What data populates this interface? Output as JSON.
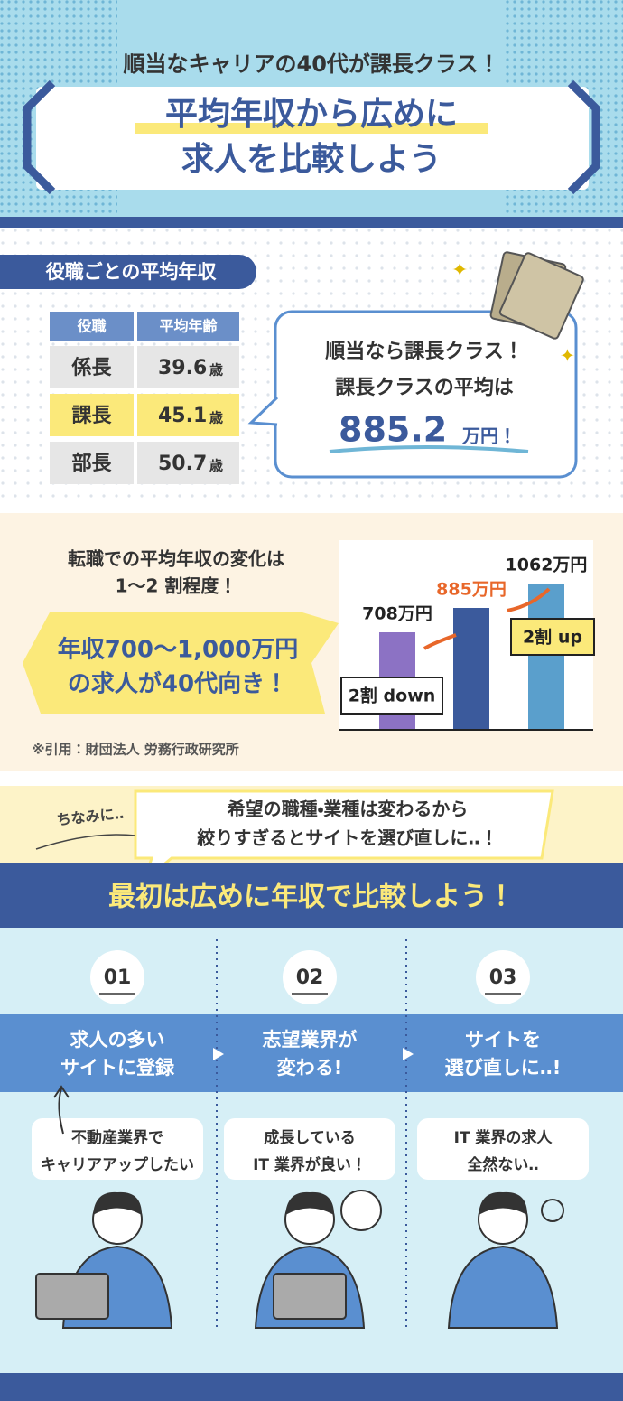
{
  "header": {
    "subtitle": "順当なキャリアの40代が課長クラス！",
    "title_lines": [
      "平均年収から広めに",
      "求人を比較しよう"
    ]
  },
  "section1": {
    "label": "役職ごとの平均年収",
    "table": {
      "header": [
        "役職",
        "平均年齢"
      ],
      "rows": [
        {
          "role": "係長",
          "age": 39.6,
          "unit": "歳"
        },
        {
          "role": "課長",
          "age": 45.1,
          "unit": "歳"
        },
        {
          "role": "部長",
          "age": 50.7,
          "unit": "歳"
        }
      ]
    },
    "bubble": {
      "lines": [
        "順当なら課長クラス！",
        "課長クラスの平均は"
      ],
      "amount": "885.2",
      "unit": "万円！"
    }
  },
  "section2": {
    "lines": [
      "転職での平均年収の変化は",
      "1〜2 割程度！"
    ],
    "callout": [
      "年収700〜1,000万円",
      "の求人が40代向き！"
    ],
    "source": "※引用：財団法人 労務行政研究所"
  },
  "chart_data": {
    "type": "bar",
    "categories": [
      null,
      null,
      null
    ],
    "values": [
      708,
      885,
      1062
    ],
    "value_labels": [
      "708万円",
      "885万円",
      "1062万円"
    ],
    "colors": [
      "#8c72c4",
      "#3b5a9c",
      "#5a9fcc"
    ],
    "annotations": [
      "2割 down",
      "2割 up"
    ]
  },
  "section3": {
    "aside": "ちなみに‥",
    "speech": [
      "希望の職種・業種は変わるから",
      "絞りすぎるとサイトを選び直しに‥！"
    ],
    "banner": "最初は広めに年収で比較しよう！",
    "steps": [
      {
        "num": "01",
        "title": [
          "求人の多い",
          "サイトに登録"
        ],
        "bubble": [
          "不動産業界で",
          "キャリアアップしたい"
        ]
      },
      {
        "num": "02",
        "title": [
          "志望業界が",
          "変わる!"
        ],
        "bubble": [
          "成長している",
          "IT 業界が良い！"
        ]
      },
      {
        "num": "03",
        "title": [
          "サイトを",
          "選び直しに‥!"
        ],
        "bubble": [
          "IT 業界の求人",
          "全然ない‥"
        ]
      }
    ]
  }
}
